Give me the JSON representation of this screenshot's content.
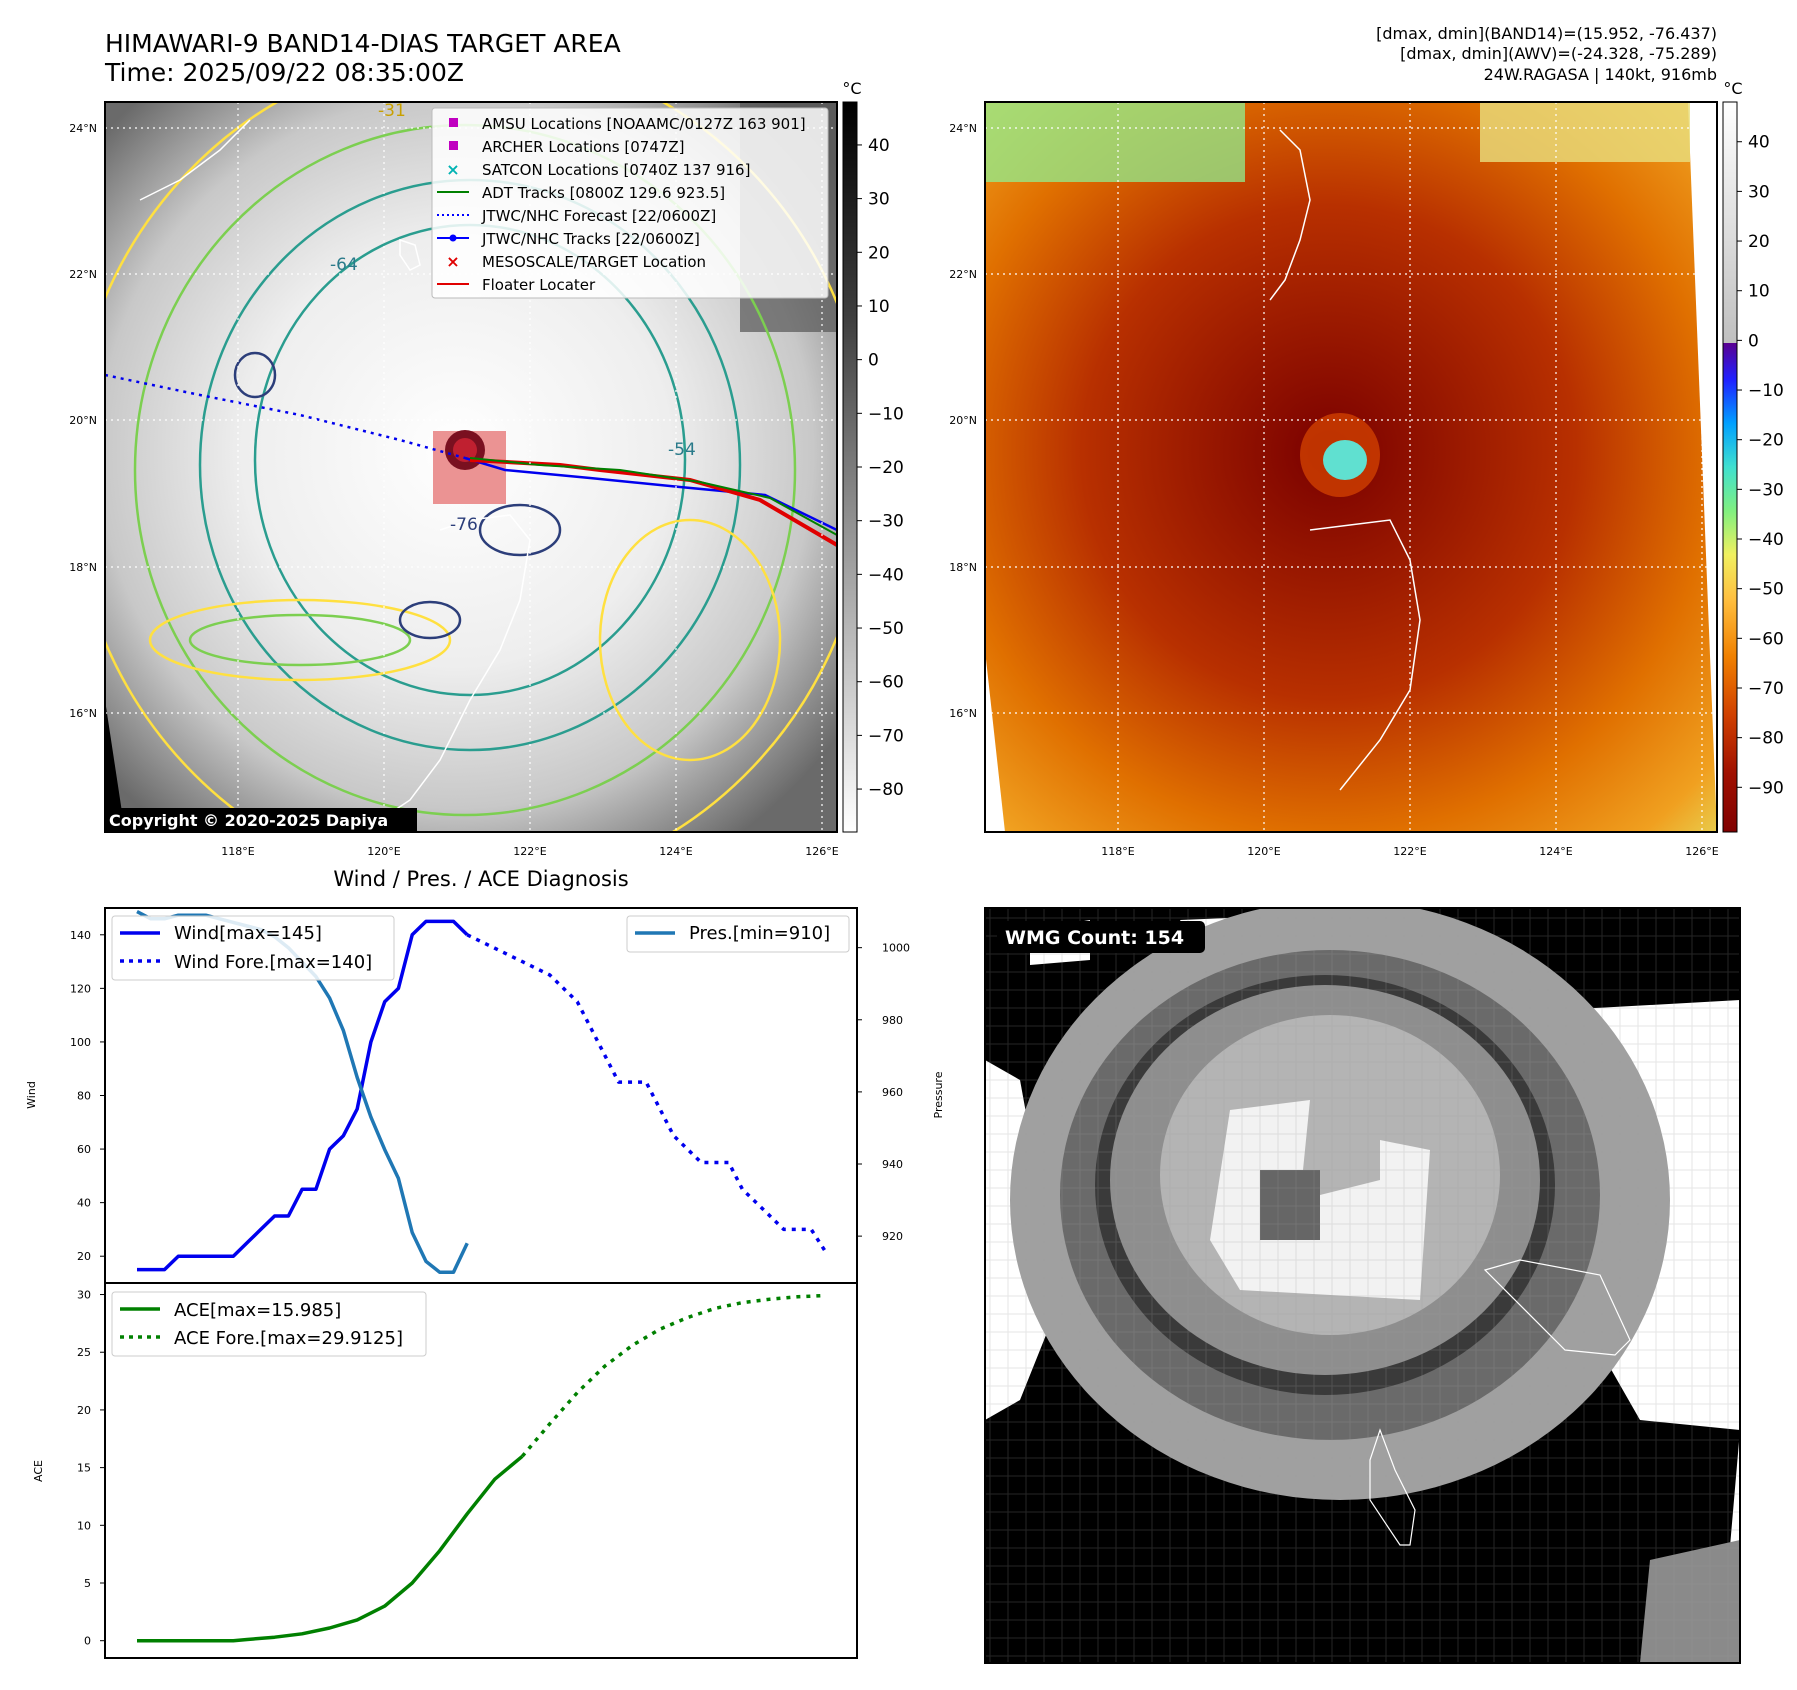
{
  "header": {
    "title": "HIMAWARI-9 BAND14-DIAS TARGET AREA",
    "time": "Time: 2025/09/22 08:35:00Z",
    "info": [
      "[dmax, dmin](BAND14)=(15.952, -76.437)",
      "[dmax, dmin](AWV)=(-24.328, -75.289)",
      "24W.RAGASA | 140kt, 916mb"
    ]
  },
  "maps": {
    "lat_labels": [
      "24°N",
      "22°N",
      "20°N",
      "18°N",
      "16°N"
    ],
    "lon_labels": [
      "118°E",
      "120°E",
      "122°E",
      "124°E",
      "126°E"
    ],
    "copyright": "Copyright © 2020-2025 Dapiya",
    "contour_labels": [
      "-31",
      "-54",
      "-64",
      "-76"
    ],
    "legend": [
      {
        "label": "AMSU Locations [NOAAMC/0127Z 163 901]",
        "marker": "square",
        "color": "#c000c0"
      },
      {
        "label": "ARCHER Locations [0747Z]",
        "marker": "square",
        "color": "#c000c0"
      },
      {
        "label": "SATCON Locations [0740Z 137 916]",
        "marker": "x",
        "color": "#00b3b3"
      },
      {
        "label": "ADT Tracks [0800Z 129.6 923.5]",
        "marker": "line",
        "color": "#008000"
      },
      {
        "label": "JTWC/NHC Forecast [22/0600Z]",
        "marker": "dotted",
        "color": "#0000ff"
      },
      {
        "label": "JTWC/NHC Tracks [22/0600Z]",
        "marker": "line-dot",
        "color": "#0000ff"
      },
      {
        "label": "MESOSCALE/TARGET Location",
        "marker": "x",
        "color": "#e00000"
      },
      {
        "label": "Floater Locater",
        "marker": "line",
        "color": "#e00000"
      }
    ],
    "gray_colorbar": {
      "unit": "°C",
      "ticks": [
        "40",
        "30",
        "20",
        "10",
        "0",
        "−10",
        "−20",
        "−30",
        "−40",
        "−50",
        "−60",
        "−70",
        "−80"
      ]
    },
    "color_colorbar": {
      "unit": "°C",
      "ticks": [
        "40",
        "30",
        "20",
        "10",
        "0",
        "−10",
        "−20",
        "−30",
        "−40",
        "−50",
        "−60",
        "−70",
        "−80",
        "−90"
      ]
    }
  },
  "diagnosis": {
    "title": "Wind / Pres. / ACE Diagnosis",
    "wind_axis_label": "Wind",
    "pressure_axis_label": "Pressure",
    "ace_axis_label": "ACE",
    "wind_ticks": [
      "20",
      "40",
      "60",
      "80",
      "100",
      "120",
      "140"
    ],
    "pressure_ticks": [
      "920",
      "940",
      "960",
      "980",
      "1000"
    ],
    "ace_ticks": [
      "0",
      "5",
      "10",
      "15",
      "20",
      "25",
      "30"
    ],
    "wind_legend": [
      "Wind[max=145]",
      "Wind Fore.[max=140]"
    ],
    "pressure_legend": [
      "Pres.[min=910]"
    ],
    "ace_legend": [
      "ACE[max=15.985]",
      "ACE Fore.[max=29.9125]"
    ]
  },
  "wmg": {
    "count_label": "WMG Count: 154"
  },
  "chart_data": [
    {
      "type": "line",
      "title": "Wind / Pres. / ACE Diagnosis",
      "ylabel": "Wind",
      "y2label": "Pressure",
      "ylim": [
        10,
        150
      ],
      "y2lim": [
        907,
        1011
      ],
      "series": [
        {
          "name": "Wind[max=145]",
          "axis": "left",
          "style": "solid",
          "color": "#0000ee",
          "points": [
            [
              0,
              15
            ],
            [
              1,
              15
            ],
            [
              2,
              15
            ],
            [
              3,
              20
            ],
            [
              4,
              20
            ],
            [
              5,
              20
            ],
            [
              6,
              20
            ],
            [
              7,
              20
            ],
            [
              8,
              25
            ],
            [
              9,
              30
            ],
            [
              10,
              35
            ],
            [
              11,
              35
            ],
            [
              12,
              45
            ],
            [
              13,
              45
            ],
            [
              14,
              60
            ],
            [
              15,
              65
            ],
            [
              16,
              75
            ],
            [
              17,
              100
            ],
            [
              18,
              115
            ],
            [
              19,
              120
            ],
            [
              20,
              140
            ],
            [
              21,
              145
            ],
            [
              22,
              145
            ],
            [
              23,
              145
            ],
            [
              24,
              140
            ]
          ]
        },
        {
          "name": "Wind Fore.[max=140]",
          "axis": "left",
          "style": "dotted",
          "color": "#0000ee",
          "points": [
            [
              24,
              140
            ],
            [
              26,
              135
            ],
            [
              28,
              130
            ],
            [
              30,
              125
            ],
            [
              32,
              115
            ],
            [
              33,
              105
            ],
            [
              34,
              95
            ],
            [
              35,
              85
            ],
            [
              36,
              85
            ],
            [
              37,
              85
            ],
            [
              38,
              75
            ],
            [
              39,
              65
            ],
            [
              40,
              60
            ],
            [
              41,
              55
            ],
            [
              42,
              55
            ],
            [
              43,
              55
            ],
            [
              44,
              45
            ],
            [
              45,
              40
            ],
            [
              46,
              35
            ],
            [
              47,
              30
            ],
            [
              48,
              30
            ],
            [
              49,
              30
            ],
            [
              50,
              22
            ]
          ]
        },
        {
          "name": "Pres.[min=910]",
          "axis": "right",
          "style": "solid",
          "color": "#1f77b4",
          "points": [
            [
              0,
              1010
            ],
            [
              1,
              1008
            ],
            [
              2,
              1008
            ],
            [
              3,
              1009
            ],
            [
              4,
              1009
            ],
            [
              5,
              1009
            ],
            [
              6,
              1008
            ],
            [
              7,
              1007
            ],
            [
              8,
              1006
            ],
            [
              9,
              1005
            ],
            [
              10,
              1003
            ],
            [
              11,
              1000
            ],
            [
              12,
              996
            ],
            [
              13,
              992
            ],
            [
              14,
              986
            ],
            [
              15,
              977
            ],
            [
              16,
              964
            ],
            [
              17,
              953
            ],
            [
              18,
              944
            ],
            [
              19,
              936
            ],
            [
              20,
              921
            ],
            [
              21,
              913
            ],
            [
              22,
              910
            ],
            [
              23,
              910
            ],
            [
              24,
              918
            ]
          ]
        }
      ]
    },
    {
      "type": "line",
      "ylabel": "ACE",
      "ylim": [
        -1.5,
        31
      ],
      "series": [
        {
          "name": "ACE[max=15.985]",
          "style": "solid",
          "color": "#008000",
          "points": [
            [
              0,
              0
            ],
            [
              5,
              0
            ],
            [
              7,
              0
            ],
            [
              8,
              0.1
            ],
            [
              10,
              0.3
            ],
            [
              12,
              0.6
            ],
            [
              14,
              1.1
            ],
            [
              16,
              1.8
            ],
            [
              18,
              3
            ],
            [
              20,
              5
            ],
            [
              22,
              7.8
            ],
            [
              24,
              11
            ],
            [
              26,
              14
            ],
            [
              28,
              15.985
            ]
          ]
        },
        {
          "name": "ACE Fore.[max=29.9125]",
          "style": "dotted",
          "color": "#008000",
          "points": [
            [
              28,
              15.985
            ],
            [
              30,
              18.8
            ],
            [
              32,
              21.5
            ],
            [
              34,
              23.8
            ],
            [
              36,
              25.6
            ],
            [
              38,
              27
            ],
            [
              40,
              28
            ],
            [
              42,
              28.8
            ],
            [
              44,
              29.3
            ],
            [
              46,
              29.6
            ],
            [
              48,
              29.8
            ],
            [
              50,
              29.9125
            ]
          ]
        }
      ]
    }
  ]
}
